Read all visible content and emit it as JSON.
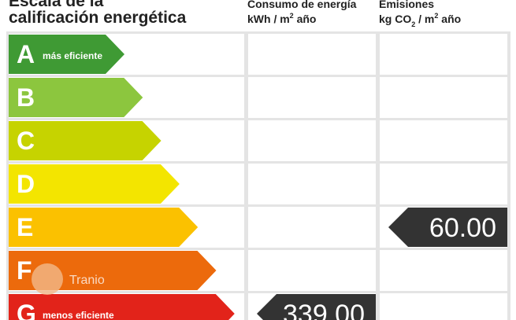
{
  "header": {
    "title_line1": "Escala de la",
    "title_line2": "calificación energética",
    "consumption": {
      "line1": "Consumo de energía",
      "unit": [
        "kWh / m",
        "2",
        " año"
      ]
    },
    "emissions": {
      "line1": "Emisiones",
      "unit": [
        "kg CO",
        "2",
        " / m",
        "2",
        " año"
      ]
    }
  },
  "rows": [
    {
      "letter": "A",
      "note": "más eficiente",
      "color": "#3f9a34"
    },
    {
      "letter": "B",
      "note": null,
      "color": "#8cc63e"
    },
    {
      "letter": "C",
      "note": null,
      "color": "#c6d300"
    },
    {
      "letter": "D",
      "note": null,
      "color": "#f3e500"
    },
    {
      "letter": "E",
      "note": null,
      "color": "#fbc100"
    },
    {
      "letter": "F",
      "note": null,
      "color": "#ec6a0c"
    },
    {
      "letter": "G",
      "note": "menos eficiente",
      "color": "#e2231a"
    }
  ],
  "consumption": {
    "rating": "G",
    "value": "339.00"
  },
  "emissions": {
    "rating": "E",
    "value": "60.00"
  },
  "watermark": "Tranio"
}
